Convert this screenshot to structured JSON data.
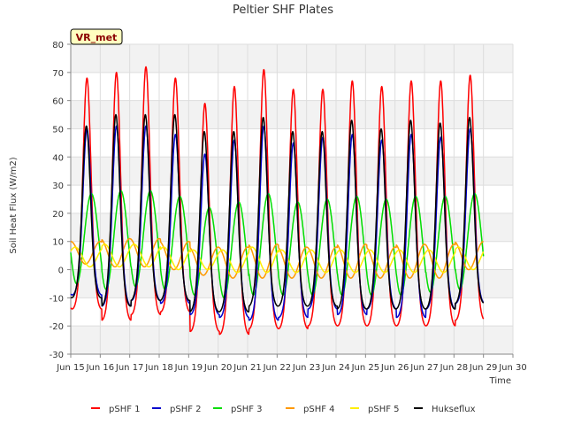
{
  "chart_data": {
    "type": "line",
    "title": "Peltier SHF Plates",
    "xlabel": "Time",
    "ylabel": "Soil Heat Flux (W/m2)",
    "site_tag": "VR_met",
    "xlim": [
      15.0,
      30.0
    ],
    "ylim": [
      -30,
      80
    ],
    "x_ticks": [
      15,
      16,
      17,
      18,
      19,
      20,
      21,
      22,
      23,
      24,
      25,
      26,
      27,
      28,
      29,
      30
    ],
    "x_tick_labels": [
      "Jun 15",
      "Jun 16",
      "Jun 17",
      "Jun 18",
      "Jun 19",
      "Jun 20",
      "Jun 21",
      "Jun 22",
      "Jun 23",
      "Jun 24",
      "Jun 25",
      "Jun 26",
      "Jun 27",
      "Jun 28",
      "Jun 29",
      "Jun 30"
    ],
    "y_ticks": [
      -30,
      -20,
      -10,
      0,
      10,
      20,
      30,
      40,
      50,
      60,
      70,
      80
    ],
    "y_tick_labels": [
      "-30",
      "-20",
      "-10",
      "0",
      "10",
      "20",
      "30",
      "40",
      "50",
      "60",
      "70",
      "80"
    ],
    "grid": true,
    "legend_position": "bottom",
    "day_peak_times": [
      15.55,
      16.55,
      17.55,
      18.55,
      19.55,
      20.55,
      21.55,
      22.55,
      23.55,
      24.55,
      25.55,
      26.55,
      27.55,
      28.55
    ],
    "series": [
      {
        "name": "pSHF 1",
        "color": "#ff0000",
        "daily_max": [
          68,
          70,
          72,
          68,
          59,
          65,
          71,
          64,
          64,
          67,
          65,
          67,
          67,
          69
        ],
        "daily_min": [
          -14,
          -18,
          -16,
          -15,
          -22,
          -23,
          -21,
          -21,
          -20,
          -20,
          -20,
          -20,
          -20,
          -18
        ],
        "peak_offset": 0.0
      },
      {
        "name": "pSHF 2",
        "color": "#0000cc",
        "daily_max": [
          50,
          51,
          51,
          48,
          41,
          46,
          51,
          45,
          47,
          48,
          46,
          48,
          47,
          50
        ],
        "daily_min": [
          -9,
          -13,
          -11,
          -12,
          -16,
          -17,
          -18,
          -17,
          -14,
          -16,
          -14,
          -17,
          -14,
          -12
        ],
        "peak_offset": 0.0
      },
      {
        "name": "pSHF 3",
        "color": "#00dd00",
        "daily_max": [
          27,
          28,
          28,
          26,
          22,
          24,
          27,
          24,
          25,
          26,
          25,
          26,
          26,
          27
        ],
        "daily_min": [
          -5,
          -7,
          -6,
          -7,
          -9,
          -10,
          -9,
          -9,
          -9,
          -9,
          -9,
          -9,
          -8,
          -7
        ],
        "peak_offset": 0.15
      },
      {
        "name": "pSHF 4",
        "color": "#ff9900",
        "daily_max": [
          10,
          11,
          11,
          10,
          8,
          8,
          9,
          8,
          8,
          9,
          8,
          9,
          9,
          10
        ],
        "daily_min": [
          2,
          1,
          1,
          0,
          -2,
          -3,
          -3,
          -3,
          -3,
          -3,
          -3,
          -3,
          -3,
          0
        ],
        "peak_offset": 0.45
      },
      {
        "name": "pSHF 5",
        "color": "#ffee00",
        "daily_max": [
          8,
          9,
          9,
          8,
          7,
          7,
          8,
          7,
          7,
          7,
          7,
          7,
          7,
          8
        ],
        "daily_min": [
          1,
          1,
          1,
          0,
          0,
          -1,
          -1,
          -1,
          -1,
          -1,
          -1,
          -1,
          -1,
          0
        ],
        "peak_offset": 0.6
      },
      {
        "name": "Hukseflux",
        "color": "#000000",
        "daily_max": [
          51,
          55,
          55,
          55,
          49,
          49,
          54,
          49,
          49,
          53,
          50,
          53,
          52,
          54
        ],
        "daily_min": [
          -10,
          -13,
          -11,
          -11,
          -15,
          -15,
          -13,
          -13,
          -13,
          -14,
          -14,
          -14,
          -14,
          -12
        ],
        "peak_offset": -0.02
      }
    ]
  }
}
